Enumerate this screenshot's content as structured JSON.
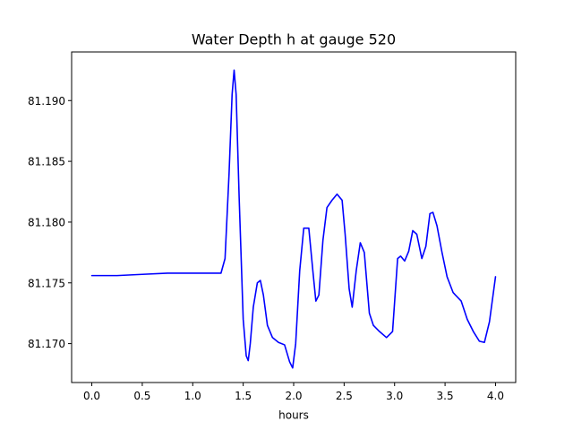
{
  "chart_data": {
    "type": "line",
    "title": "Water Depth h at gauge 520",
    "xlabel": "hours",
    "ylabel": "",
    "xlim": [
      -0.2,
      4.2
    ],
    "ylim": [
      81.1668,
      81.194
    ],
    "xticks": [
      0.0,
      0.5,
      1.0,
      1.5,
      2.0,
      2.5,
      3.0,
      3.5,
      4.0
    ],
    "xtick_labels": [
      "0.0",
      "0.5",
      "1.0",
      "1.5",
      "2.0",
      "2.5",
      "3.0",
      "3.5",
      "4.0"
    ],
    "yticks": [
      81.17,
      81.175,
      81.18,
      81.185,
      81.19
    ],
    "ytick_labels": [
      "81.170",
      "81.175",
      "81.180",
      "81.185",
      "81.190"
    ],
    "grid": false,
    "series": [
      {
        "color": "#0000ff",
        "x": [
          0.0,
          0.25,
          0.5,
          0.75,
          1.0,
          1.1,
          1.2,
          1.28,
          1.32,
          1.36,
          1.39,
          1.41,
          1.43,
          1.46,
          1.5,
          1.53,
          1.55,
          1.57,
          1.6,
          1.64,
          1.67,
          1.7,
          1.74,
          1.79,
          1.85,
          1.91,
          1.96,
          1.99,
          2.02,
          2.06,
          2.1,
          2.15,
          2.19,
          2.22,
          2.25,
          2.29,
          2.33,
          2.38,
          2.43,
          2.48,
          2.51,
          2.55,
          2.58,
          2.62,
          2.66,
          2.7,
          2.72,
          2.75,
          2.79,
          2.85,
          2.92,
          2.98,
          3.03,
          3.06,
          3.1,
          3.14,
          3.18,
          3.22,
          3.27,
          3.31,
          3.35,
          3.38,
          3.42,
          3.47,
          3.52,
          3.58,
          3.66,
          3.72,
          3.78,
          3.84,
          3.89,
          3.94,
          4.0
        ],
        "y": [
          81.1756,
          81.1756,
          81.1757,
          81.1758,
          81.1758,
          81.1758,
          81.1758,
          81.1758,
          81.177,
          81.184,
          81.1905,
          81.1925,
          81.1905,
          81.182,
          81.172,
          81.169,
          81.1686,
          81.17,
          81.173,
          81.175,
          81.1752,
          81.174,
          81.1715,
          81.1705,
          81.1701,
          81.1699,
          81.1685,
          81.168,
          81.17,
          81.176,
          81.1795,
          81.1795,
          81.176,
          81.1735,
          81.174,
          81.1785,
          81.1812,
          81.1818,
          81.1823,
          81.1818,
          81.179,
          81.1745,
          81.173,
          81.176,
          81.1783,
          81.1775,
          81.1755,
          81.1725,
          81.1715,
          81.171,
          81.1705,
          81.171,
          81.177,
          81.1772,
          81.1768,
          81.1776,
          81.1793,
          81.179,
          81.177,
          81.178,
          81.1807,
          81.1808,
          81.1797,
          81.1775,
          81.1755,
          81.1742,
          81.1735,
          81.172,
          81.171,
          81.1702,
          81.1701,
          81.1718,
          81.1755
        ]
      }
    ]
  }
}
